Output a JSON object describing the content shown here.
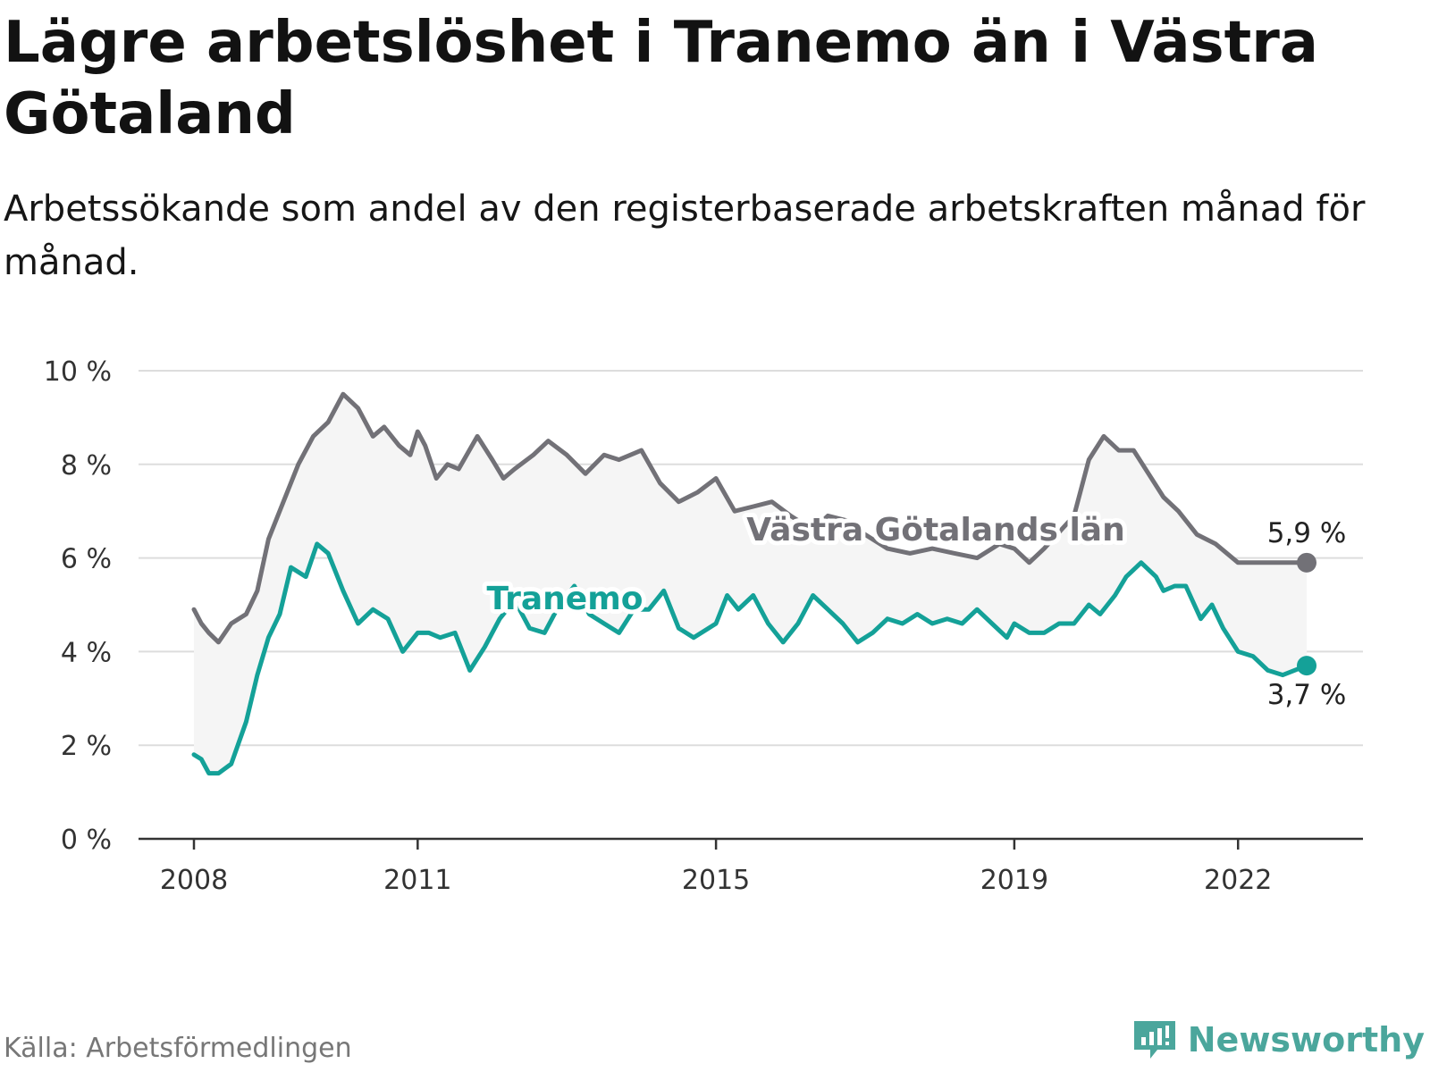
{
  "title": "Lägre arbetslöshet i Tranemo än i Västra Götaland",
  "subtitle": "Arbetssökande som andel av den registerbaserade arbetskraften månad för månad.",
  "source": "Källa: Arbetsförmedlingen",
  "brand": {
    "name": "Newsworthy",
    "icon": "newsworthy-logo-icon",
    "color": "#4ba69c"
  },
  "colors": {
    "region": "#727177",
    "municipality": "#14a198",
    "band": "#f5f5f5",
    "grid": "#dddddd",
    "axis": "#333333"
  },
  "chart_data": {
    "type": "line",
    "title": "Lägre arbetslöshet i Tranemo än i Västra Götaland",
    "ylabel": "",
    "xlabel": "",
    "ylim": [
      0,
      10
    ],
    "yticks": [
      0,
      2,
      4,
      6,
      8,
      10
    ],
    "ytick_labels": [
      "0 %",
      "2 %",
      "4 %",
      "6 %",
      "8 %",
      "10 %"
    ],
    "xlim": [
      2008.0,
      2022.92
    ],
    "xticks": [
      2008,
      2011,
      2015,
      2019,
      2022
    ],
    "xtick_labels": [
      "2008",
      "2011",
      "2015",
      "2019",
      "2022"
    ],
    "grid": true,
    "series": [
      {
        "name": "Västra Götalands län",
        "end_label": "5,9 %",
        "x": [
          2008.0,
          2008.1,
          2008.2,
          2008.33,
          2008.5,
          2008.7,
          2008.85,
          2009.0,
          2009.2,
          2009.4,
          2009.6,
          2009.8,
          2010.0,
          2010.2,
          2010.4,
          2010.55,
          2010.75,
          2010.9,
          2011.0,
          2011.1,
          2011.25,
          2011.4,
          2011.55,
          2011.8,
          2012.0,
          2012.15,
          2012.3,
          2012.55,
          2012.75,
          2013.0,
          2013.25,
          2013.5,
          2013.7,
          2014.0,
          2014.25,
          2014.5,
          2014.75,
          2015.0,
          2015.25,
          2015.5,
          2015.75,
          2016.0,
          2016.3,
          2016.5,
          2016.75,
          2017.0,
          2017.3,
          2017.6,
          2017.9,
          2018.2,
          2018.5,
          2018.8,
          2019.0,
          2019.2,
          2019.4,
          2019.8,
          2020.0,
          2020.2,
          2020.4,
          2020.6,
          2020.8,
          2021.0,
          2021.2,
          2021.45,
          2021.7,
          2022.0,
          2022.3,
          2022.6,
          2022.92
        ],
        "values": [
          4.9,
          4.6,
          4.4,
          4.2,
          4.6,
          4.8,
          5.3,
          6.4,
          7.2,
          8.0,
          8.6,
          8.9,
          9.5,
          9.2,
          8.6,
          8.8,
          8.4,
          8.2,
          8.7,
          8.4,
          7.7,
          8.0,
          7.9,
          8.6,
          8.1,
          7.7,
          7.9,
          8.2,
          8.5,
          8.2,
          7.8,
          8.2,
          8.1,
          8.3,
          7.6,
          7.2,
          7.4,
          7.7,
          7.0,
          7.1,
          7.2,
          6.9,
          6.6,
          6.9,
          6.8,
          6.5,
          6.2,
          6.1,
          6.2,
          6.1,
          6.0,
          6.3,
          6.2,
          5.9,
          6.2,
          6.9,
          8.1,
          8.6,
          8.3,
          8.3,
          7.8,
          7.3,
          7.0,
          6.5,
          6.3,
          5.9,
          5.9,
          5.9,
          5.9
        ]
      },
      {
        "name": "Tranemo",
        "end_label": "3,7 %",
        "x": [
          2008.0,
          2008.1,
          2008.2,
          2008.33,
          2008.5,
          2008.7,
          2008.85,
          2009.0,
          2009.15,
          2009.3,
          2009.5,
          2009.65,
          2009.8,
          2010.0,
          2010.2,
          2010.4,
          2010.6,
          2010.8,
          2011.0,
          2011.15,
          2011.3,
          2011.5,
          2011.7,
          2011.9,
          2012.1,
          2012.3,
          2012.5,
          2012.7,
          2012.9,
          2013.1,
          2013.3,
          2013.5,
          2013.7,
          2013.9,
          2014.1,
          2014.3,
          2014.5,
          2014.7,
          2014.9,
          2015.0,
          2015.15,
          2015.3,
          2015.5,
          2015.7,
          2015.9,
          2016.1,
          2016.3,
          2016.5,
          2016.7,
          2016.9,
          2017.1,
          2017.3,
          2017.5,
          2017.7,
          2017.9,
          2018.1,
          2018.3,
          2018.5,
          2018.7,
          2018.9,
          2019.0,
          2019.2,
          2019.4,
          2019.6,
          2019.8,
          2020.0,
          2020.15,
          2020.35,
          2020.5,
          2020.7,
          2020.9,
          2021.0,
          2021.15,
          2021.3,
          2021.5,
          2021.65,
          2021.8,
          2022.0,
          2022.2,
          2022.4,
          2022.6,
          2022.92
        ],
        "values": [
          1.8,
          1.7,
          1.4,
          1.4,
          1.6,
          2.5,
          3.5,
          4.3,
          4.8,
          5.8,
          5.6,
          6.3,
          6.1,
          5.3,
          4.6,
          4.9,
          4.7,
          4.0,
          4.4,
          4.4,
          4.3,
          4.4,
          3.6,
          4.1,
          4.7,
          5.1,
          4.5,
          4.4,
          5.0,
          5.4,
          4.8,
          4.6,
          4.4,
          4.9,
          4.9,
          5.3,
          4.5,
          4.3,
          4.5,
          4.6,
          5.2,
          4.9,
          5.2,
          4.6,
          4.2,
          4.6,
          5.2,
          4.9,
          4.6,
          4.2,
          4.4,
          4.7,
          4.6,
          4.8,
          4.6,
          4.7,
          4.6,
          4.9,
          4.6,
          4.3,
          4.6,
          4.4,
          4.4,
          4.6,
          4.6,
          5.0,
          4.8,
          5.2,
          5.6,
          5.9,
          5.6,
          5.3,
          5.4,
          5.4,
          4.7,
          5.0,
          4.5,
          4.0,
          3.9,
          3.6,
          3.5,
          3.7
        ]
      }
    ],
    "annotations": [
      "Västra Götalands län",
      "Tranemo"
    ]
  }
}
